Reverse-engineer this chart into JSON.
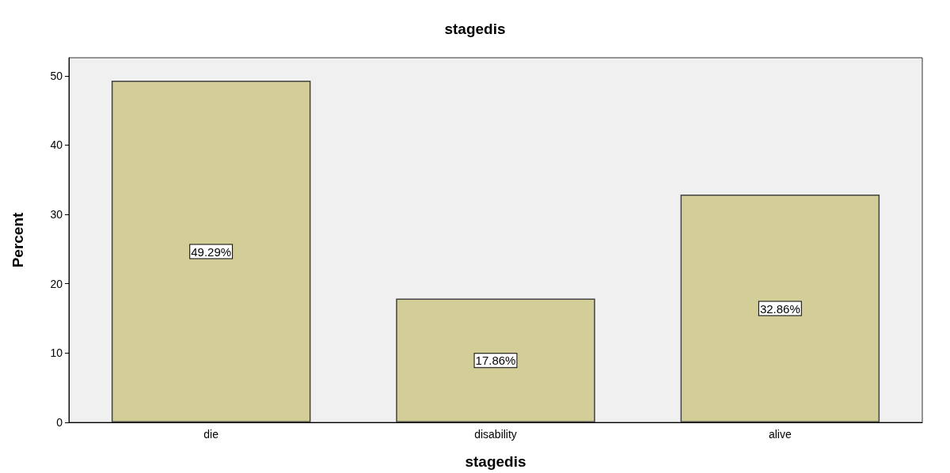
{
  "chart_data": {
    "type": "bar",
    "title": "stagedis",
    "xlabel": "stagedis",
    "ylabel": "Percent",
    "categories": [
      "die",
      "disability",
      "alive"
    ],
    "values": [
      49.29,
      17.86,
      32.86
    ],
    "value_labels": [
      "49.29%",
      "17.86%",
      "32.86%"
    ],
    "color": "#d3cd97",
    "ylim": [
      0,
      52.6
    ],
    "yticks": [
      0,
      10,
      20,
      30,
      40,
      50
    ],
    "grid": false
  }
}
